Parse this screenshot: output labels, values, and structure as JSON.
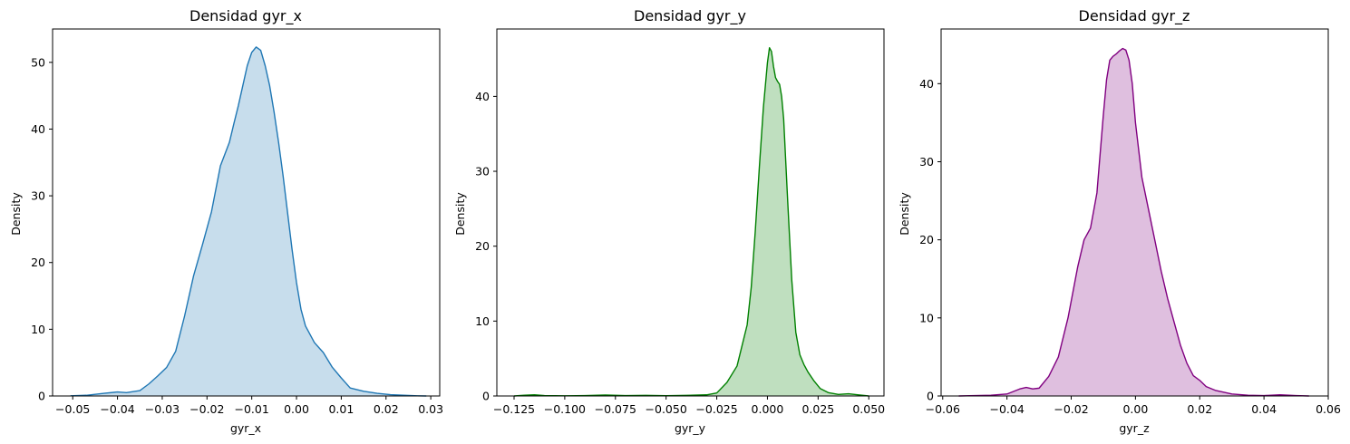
{
  "chart_data": [
    {
      "type": "area",
      "title": "Densidad gyr_x",
      "xlabel": "gyr_x",
      "ylabel": "Density",
      "color": "#1f77b4",
      "xlim": [
        -0.0545,
        0.032
      ],
      "ylim": [
        0,
        55
      ],
      "xticks": [
        -0.05,
        -0.04,
        -0.03,
        -0.02,
        -0.01,
        0.0,
        0.01,
        0.02,
        0.03
      ],
      "xtick_labels": [
        "−0.05",
        "−0.04",
        "−0.03",
        "−0.02",
        "−0.01",
        "0.00",
        "0.01",
        "0.02",
        "0.03"
      ],
      "yticks": [
        0,
        10,
        20,
        30,
        40,
        50
      ],
      "ytick_labels": [
        "0",
        "10",
        "20",
        "30",
        "40",
        "50"
      ],
      "series": [
        {
          "x": [
            -0.0505,
            -0.047,
            -0.043,
            -0.04,
            -0.038,
            -0.035,
            -0.033,
            -0.031,
            -0.029,
            -0.027,
            -0.025,
            -0.023,
            -0.021,
            -0.019,
            -0.017,
            -0.015,
            -0.014,
            -0.013,
            -0.012,
            -0.011,
            -0.01,
            -0.009,
            -0.008,
            -0.007,
            -0.006,
            -0.005,
            -0.004,
            -0.003,
            -0.002,
            -0.001,
            0.0,
            0.001,
            0.002,
            0.004,
            0.006,
            0.008,
            0.01,
            0.012,
            0.015,
            0.018,
            0.021,
            0.024,
            0.027,
            0.029
          ],
          "y": [
            0.02,
            0.1,
            0.4,
            0.6,
            0.5,
            0.8,
            1.8,
            3.0,
            4.3,
            6.7,
            12.0,
            18.0,
            22.7,
            27.6,
            34.5,
            38.0,
            40.8,
            43.5,
            46.5,
            49.5,
            51.5,
            52.3,
            51.8,
            49.5,
            46.5,
            42.5,
            38.0,
            33.0,
            27.5,
            22.0,
            17.0,
            13.0,
            10.5,
            8.0,
            6.5,
            4.3,
            2.7,
            1.2,
            0.7,
            0.4,
            0.2,
            0.1,
            0.03,
            0.0
          ]
        }
      ]
    },
    {
      "type": "area",
      "title": "Densidad gyr_y",
      "xlabel": "gyr_y",
      "ylabel": "Density",
      "color": "#008000",
      "xlim": [
        -0.1335,
        0.0575
      ],
      "ylim": [
        0,
        49
      ],
      "xticks": [
        -0.125,
        -0.1,
        -0.075,
        -0.05,
        -0.025,
        0.0,
        0.025,
        0.05
      ],
      "xtick_labels": [
        "−0.125",
        "−0.100",
        "−0.075",
        "−0.050",
        "−0.025",
        "0.000",
        "0.025",
        "0.050"
      ],
      "yticks": [
        0,
        10,
        20,
        30,
        40
      ],
      "ytick_labels": [
        "0",
        "10",
        "20",
        "30",
        "40"
      ],
      "series": [
        {
          "x": [
            -0.125,
            -0.12,
            -0.115,
            -0.11,
            -0.1,
            -0.09,
            -0.08,
            -0.07,
            -0.06,
            -0.05,
            -0.04,
            -0.03,
            -0.025,
            -0.02,
            -0.015,
            -0.01,
            -0.008,
            -0.006,
            -0.004,
            -0.002,
            0.0,
            0.001,
            0.002,
            0.003,
            0.004,
            0.005,
            0.006,
            0.007,
            0.008,
            0.009,
            0.01,
            0.012,
            0.014,
            0.016,
            0.018,
            0.02,
            0.023,
            0.026,
            0.03,
            0.035,
            0.04,
            0.045,
            0.05
          ],
          "y": [
            0.0,
            0.1,
            0.15,
            0.05,
            0.02,
            0.05,
            0.12,
            0.05,
            0.08,
            0.04,
            0.08,
            0.15,
            0.4,
            1.8,
            4.0,
            9.5,
            14.5,
            22.0,
            30.5,
            38.5,
            44.5,
            46.5,
            46.0,
            44.0,
            42.5,
            42.0,
            41.6,
            40.0,
            37.0,
            31.5,
            26.0,
            15.5,
            8.5,
            5.5,
            4.2,
            3.2,
            2.0,
            1.0,
            0.45,
            0.2,
            0.3,
            0.15,
            0.0
          ]
        }
      ]
    },
    {
      "type": "area",
      "title": "Densidad gyr_z",
      "xlabel": "gyr_z",
      "ylabel": "Density",
      "color": "#800080",
      "xlim": [
        -0.0605,
        0.06
      ],
      "ylim": [
        0,
        47
      ],
      "xticks": [
        -0.06,
        -0.04,
        -0.02,
        0.0,
        0.02,
        0.04,
        0.06
      ],
      "xtick_labels": [
        "−0.06",
        "−0.04",
        "−0.02",
        "0.00",
        "0.02",
        "0.04",
        "0.06"
      ],
      "yticks": [
        0,
        10,
        20,
        30,
        40
      ],
      "ytick_labels": [
        "0",
        "10",
        "20",
        "30",
        "40"
      ],
      "series": [
        {
          "x": [
            -0.055,
            -0.05,
            -0.045,
            -0.04,
            -0.036,
            -0.034,
            -0.032,
            -0.03,
            -0.027,
            -0.024,
            -0.021,
            -0.018,
            -0.016,
            -0.014,
            -0.012,
            -0.01,
            -0.009,
            -0.008,
            -0.007,
            -0.006,
            -0.005,
            -0.004,
            -0.003,
            -0.002,
            -0.001,
            0.0,
            0.002,
            0.004,
            0.006,
            0.008,
            0.01,
            0.012,
            0.014,
            0.016,
            0.018,
            0.02,
            0.022,
            0.025,
            0.03,
            0.035,
            0.04,
            0.045,
            0.05,
            0.054
          ],
          "y": [
            0.0,
            0.05,
            0.1,
            0.25,
            0.9,
            1.1,
            0.9,
            1.0,
            2.5,
            5.0,
            10.0,
            16.5,
            20.0,
            21.5,
            26.0,
            36.0,
            40.5,
            43.0,
            43.5,
            43.8,
            44.2,
            44.5,
            44.3,
            43.0,
            40.0,
            35.0,
            28.0,
            24.0,
            20.0,
            16.0,
            12.5,
            9.5,
            6.5,
            4.2,
            2.6,
            2.0,
            1.2,
            0.7,
            0.25,
            0.1,
            0.05,
            0.15,
            0.05,
            0.0
          ]
        }
      ]
    }
  ]
}
